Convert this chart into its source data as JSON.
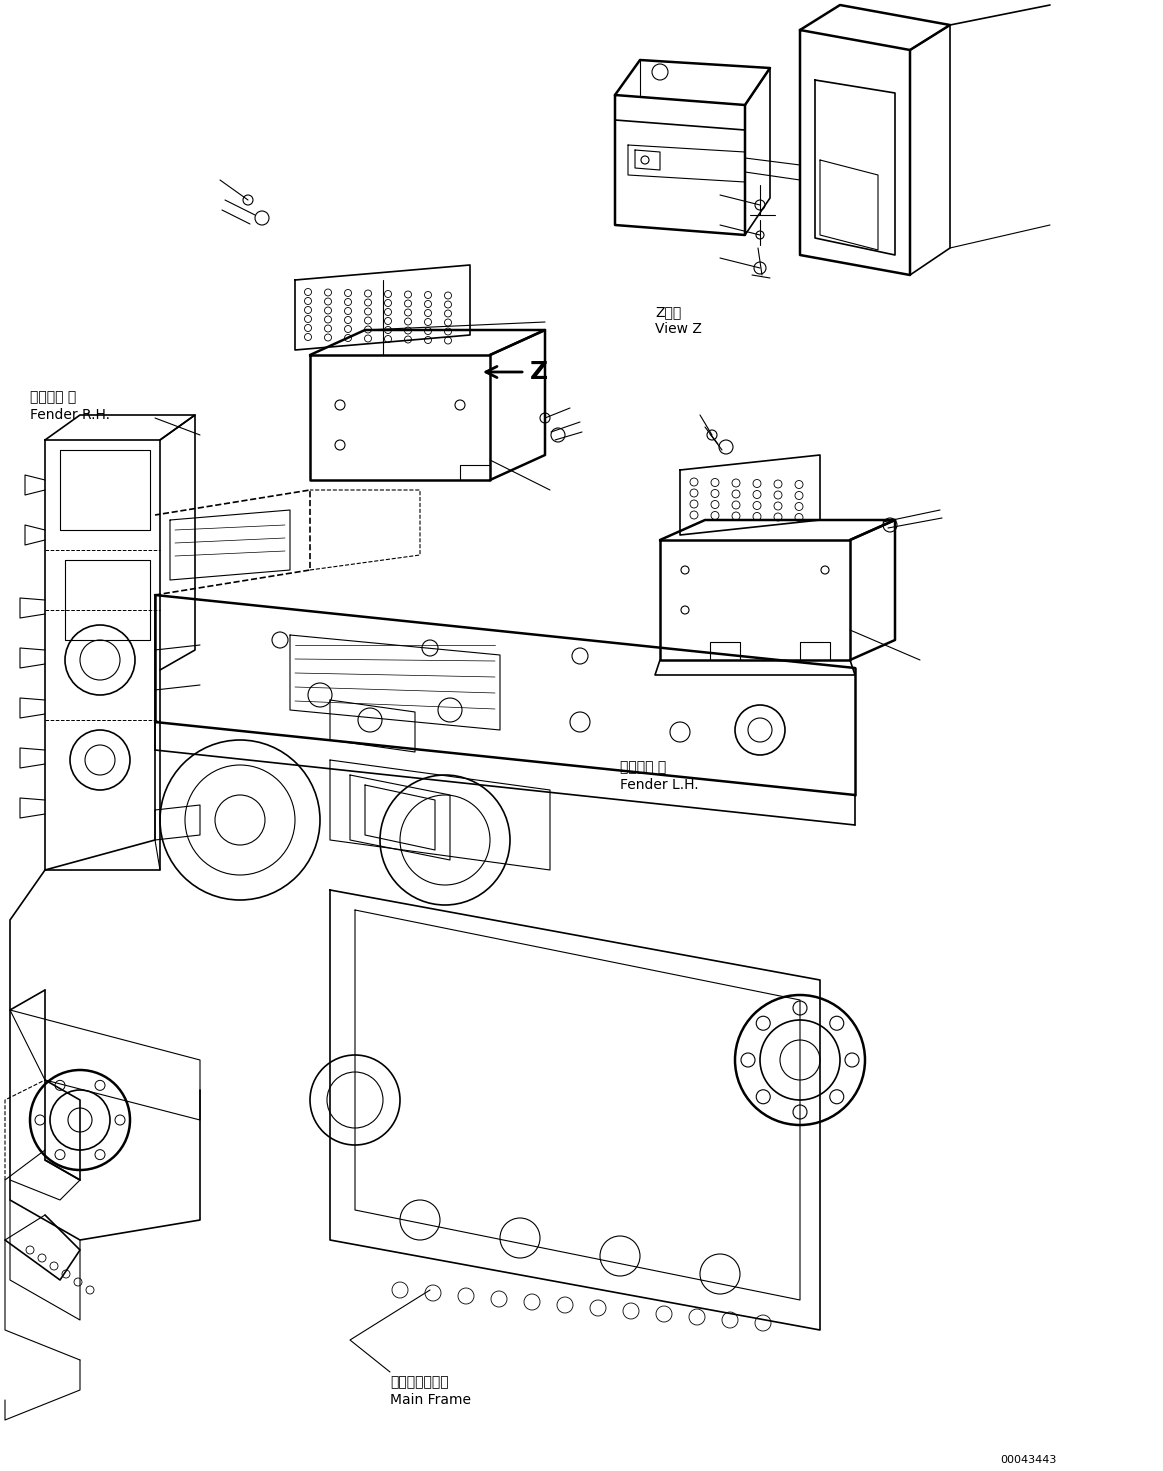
{
  "background_color": "#ffffff",
  "line_color": "#000000",
  "figure_width": 11.63,
  "figure_height": 14.71,
  "dpi": 100,
  "labels": {
    "fender_rh_jp": "フェンダ 右",
    "fender_rh_en": "Fender R.H.",
    "fender_lh_jp": "フェンダ 左",
    "fender_lh_en": "Fender L.H.",
    "main_frame_jp": "メインフレーム",
    "main_frame_en": "Main Frame",
    "view_z_jp": "Z　視",
    "view_z_en": "View Z",
    "part_number": "00043443",
    "z_label": "Z"
  },
  "font_size_labels": 9,
  "font_size_part_number": 8
}
